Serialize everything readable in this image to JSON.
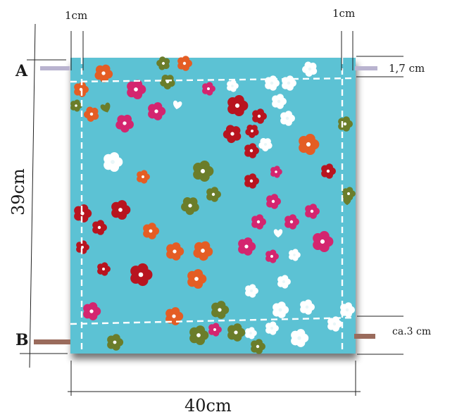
{
  "labels": {
    "seam_left": "1cm",
    "seam_right": "1cm",
    "point_a": "A",
    "point_b": "B",
    "top_margin": "1,7 cm",
    "bottom_margin": "ca.3 cm",
    "height": "39cm",
    "width": "40cm"
  },
  "colors": {
    "fabric": "#5cc2d4",
    "marker_a": "#b9b3cf",
    "marker_b": "#9a6b5c",
    "dashed_line": "#ffffff",
    "flower_red": "#b8141f",
    "flower_pink": "#d4256f",
    "flower_orange": "#e45d24",
    "flower_olive": "#6b7d2a",
    "flower_white": "#ffffff"
  },
  "icons": [
    "flower-icon",
    "heart-icon"
  ]
}
